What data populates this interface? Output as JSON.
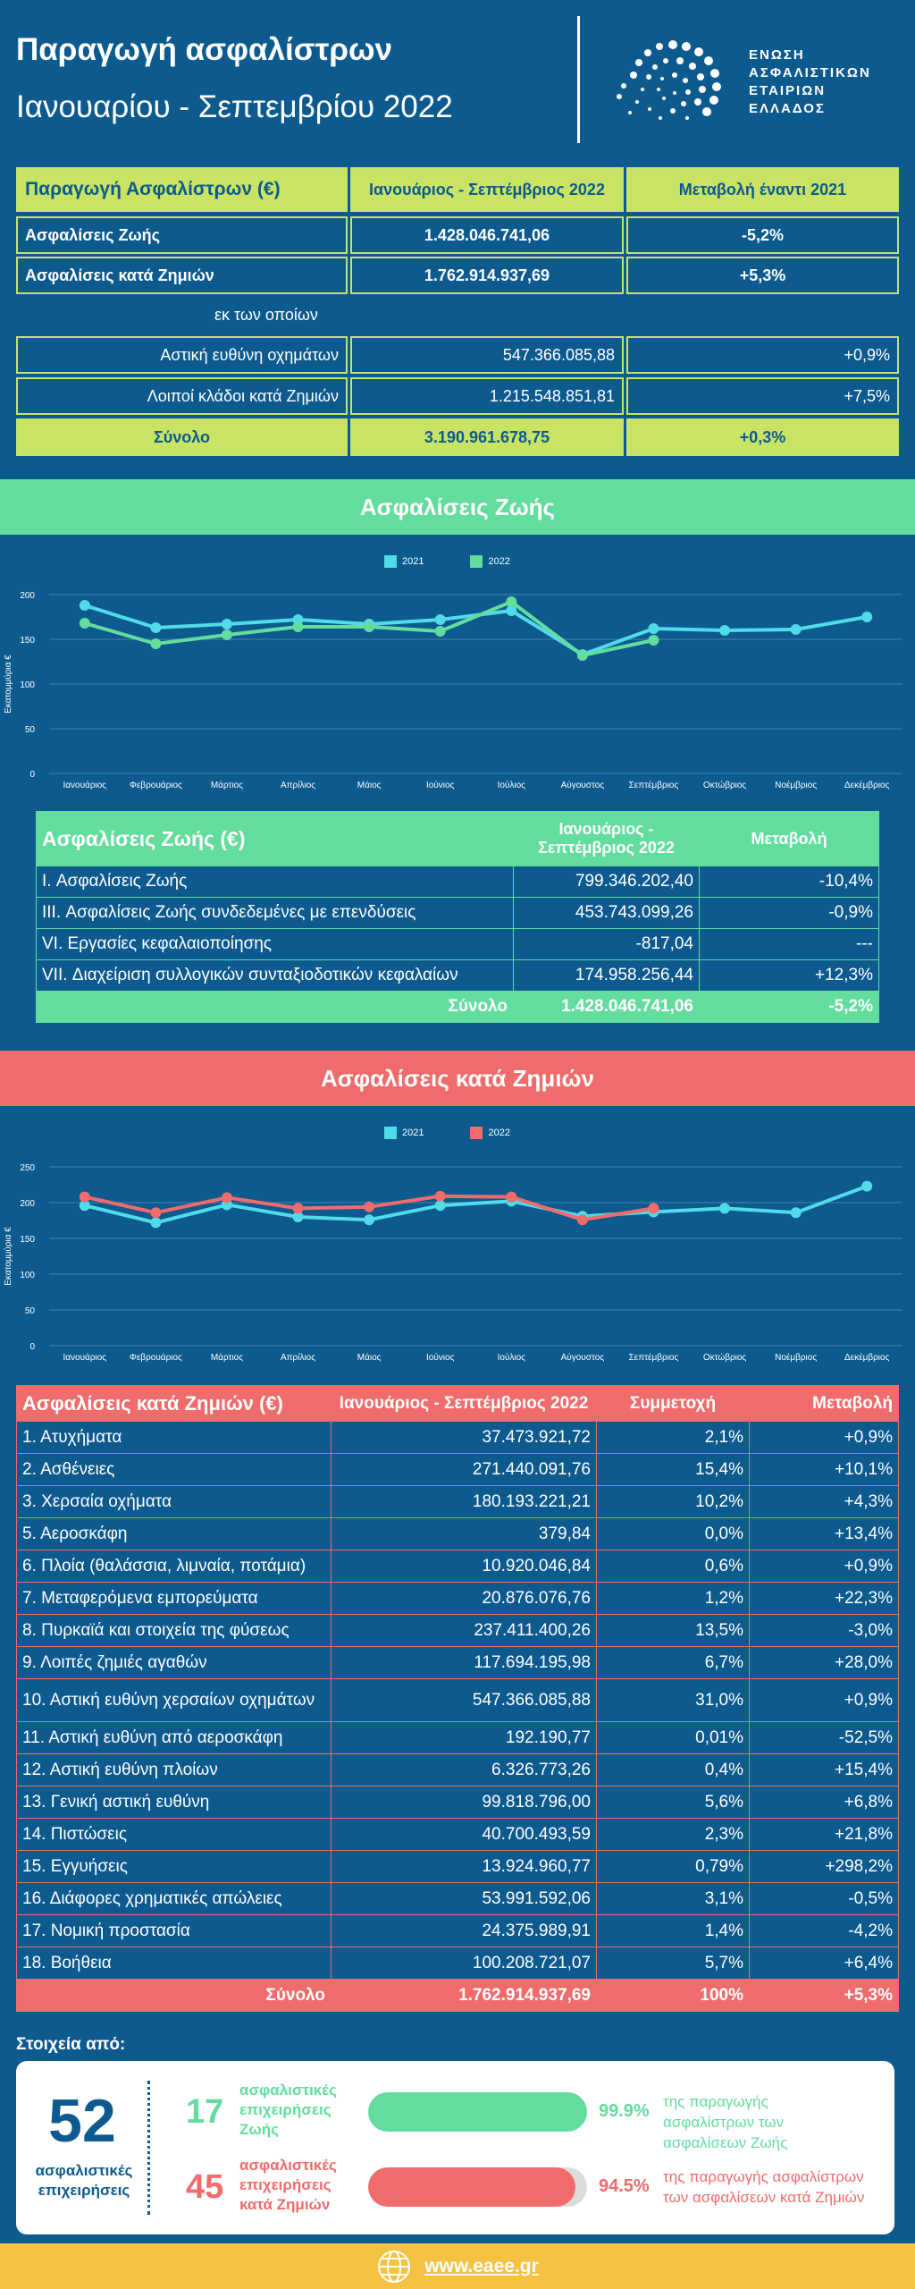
{
  "header": {
    "title": "Παραγωγή ασφαλίστρων",
    "period": "Ιανουαρίου - Σεπτεμβρίου 2022",
    "logo_lines": [
      "ΕΝΩΣΗ",
      "ΑΣΦΑΛΙΣΤΙΚΩΝ",
      "ΕΤΑΙΡΙΩΝ",
      "ΕΛΛΑΔΟΣ"
    ]
  },
  "summary": {
    "headers": [
      "Παραγωγή Ασφαλίστρων (€)",
      "Ιανουάριος - Σεπτέμβριος 2022",
      "Μεταβολή έναντι 2021"
    ],
    "life": [
      "Ασφαλίσεις Ζωής",
      "1.428.046.741,06",
      "-5,2%"
    ],
    "nonlife": [
      "Ασφαλίσεις κατά Ζημιών",
      "1.762.914.937,69",
      "+5,3%"
    ],
    "of_which": "εκ των οποίων",
    "motor": [
      "Αστική ευθύνη οχημάτων",
      "547.366.085,88",
      "+0,9%"
    ],
    "other": [
      "Λοιποί κλάδοι κατά Ζημιών",
      "1.215.548.851,81",
      "+7,5%"
    ],
    "total": [
      "Σύνολο",
      "3.190.961.678,75",
      "+0,3%"
    ]
  },
  "life_section": {
    "band": "Ασφαλίσεις Ζωής"
  },
  "life_chart": {
    "legend": [
      "2021",
      "2022"
    ],
    "colors": [
      "#4fdbe8",
      "#62dd9d"
    ]
  },
  "nonlife_chart": {
    "legend": [
      "2021",
      "2022"
    ],
    "colors": [
      "#4fdbe8",
      "#f06b6b"
    ]
  },
  "chart_data": [
    {
      "type": "line",
      "title": "Ασφαλίσεις Ζωής",
      "ylabel": "Εκατομμύρια €",
      "ylim": [
        0,
        200
      ],
      "yticks": [
        0,
        50,
        100,
        150,
        200
      ],
      "categories": [
        "Ιανουάριος",
        "Φεβρουάριος",
        "Μάρτιος",
        "Απρίλιος",
        "Μάιος",
        "Ιούνιος",
        "Ιούλιος",
        "Αύγουστος",
        "Σεπτέμβριος",
        "Οκτώβριος",
        "Νοέμβριος",
        "Δεκέμβριος"
      ],
      "series": [
        {
          "name": "2021",
          "values": [
            188,
            163,
            167,
            172,
            167,
            172,
            182,
            133,
            162,
            160,
            161,
            175
          ]
        },
        {
          "name": "2022",
          "values": [
            168,
            145,
            155,
            164,
            164,
            159,
            192,
            132,
            149,
            null,
            null,
            null
          ]
        }
      ]
    },
    {
      "type": "line",
      "title": "Ασφαλίσεις κατά Ζημιών",
      "ylabel": "Εκατομμύρια €",
      "ylim": [
        0,
        250
      ],
      "yticks": [
        0,
        50,
        100,
        150,
        200,
        250
      ],
      "categories": [
        "Ιανουάριος",
        "Φεβρουάριος",
        "Μάρτιος",
        "Απρίλιος",
        "Μάιος",
        "Ιούνιος",
        "Ιούλιος",
        "Αύγουστος",
        "Σεπτέμβριος",
        "Οκτώβριος",
        "Νοέμβριος",
        "Δεκέμβριος"
      ],
      "series": [
        {
          "name": "2021",
          "values": [
            196,
            172,
            197,
            180,
            176,
            196,
            202,
            181,
            187,
            192,
            186,
            223
          ]
        },
        {
          "name": "2022",
          "values": [
            208,
            186,
            207,
            192,
            194,
            209,
            208,
            176,
            192,
            null,
            null,
            null
          ]
        }
      ]
    }
  ],
  "life_table": {
    "headers": [
      "Ασφαλίσεις Ζωής (€)",
      "Ιανουάριος - Σεπτέμβριος 2022",
      "Μεταβολή"
    ],
    "rows": [
      [
        "I. Ασφαλίσεις  Ζωής",
        "799.346.202,40",
        "-10,4%"
      ],
      [
        "III. Ασφαλίσεις  Ζωής  συνδεδεμένες με επενδύσεις",
        "453.743.099,26",
        "-0,9%"
      ],
      [
        "VI. Εργασίες κεφαλαιοποίησης",
        "-817,04",
        "---"
      ],
      [
        "VII. Διαχείριση συλλογικών συνταξιοδοτικών κεφαλαίων",
        "174.958.256,44",
        "+12,3%"
      ]
    ],
    "total": [
      "Σύνολο",
      "1.428.046.741,06",
      "-5,2%"
    ]
  },
  "nonlife_section": {
    "band": "Ασφαλίσεις κατά Ζημιών"
  },
  "nonlife_table": {
    "headers": [
      "Ασφαλίσεις κατά Ζημιών (€)",
      "Ιανουάριος - Σεπτέμβριος 2022",
      "Συμμετοχή",
      "Μεταβολή"
    ],
    "rows": [
      [
        "1. Ατυχήματα",
        "37.473.921,72",
        "2,1%",
        "+0,9%"
      ],
      [
        "2. Ασθένειες",
        "271.440.091,76",
        "15,4%",
        "+10,1%"
      ],
      [
        "3. Χερσαία οχήματα",
        "180.193.221,21",
        "10,2%",
        "+4,3%"
      ],
      [
        "5. Αεροσκάφη",
        "379,84",
        "0,0%",
        "+13,4%"
      ],
      [
        "6. Πλοία (θαλάσσια, λιμναία, ποτάμια)",
        "10.920.046,84",
        "0,6%",
        "+0,9%"
      ],
      [
        "7. Μεταφερόμενα εμπορεύματα",
        "20.876.076,76",
        "1,2%",
        "+22,3%"
      ],
      [
        "8. Πυρκαϊά και στοιχεία της φύσεως",
        "237.411.400,26",
        "13,5%",
        "-3,0%"
      ],
      [
        "9. Λοιπές ζημιές αγαθών",
        "117.694.195,98",
        "6,7%",
        "+28,0%"
      ],
      [
        "10. Αστική ευθύνη χερσαίων οχημάτων",
        "547.366.085,88",
        "31,0%",
        "+0,9%"
      ],
      [
        "11. Αστική ευθύνη από αεροσκάφη",
        "192.190,77",
        "0,01%",
        "-52,5%"
      ],
      [
        "12. Αστική ευθύνη πλοίων",
        "6.326.773,26",
        "0,4%",
        "+15,4%"
      ],
      [
        "13. Γενική αστική ευθύνη",
        "99.818.796,00",
        "5,6%",
        "+6,8%"
      ],
      [
        "14. Πιστώσεις",
        "40.700.493,59",
        "2,3%",
        "+21,8%"
      ],
      [
        "15. Εγγυήσεις",
        "13.924.960,77",
        "0,79%",
        "+298,2%"
      ],
      [
        "16. Διάφορες χρηματικές απώλειες",
        "53.991.592,06",
        "3,1%",
        "-0,5%"
      ],
      [
        "17. Νομική προστασία",
        "24.375.989,91",
        "1,4%",
        "-4,2%"
      ],
      [
        "18. Βοήθεια",
        "100.208.721,07",
        "5,7%",
        "+6,4%"
      ]
    ],
    "total": [
      "Σύνολο",
      "1.762.914.937,69",
      "100%",
      "+5,3%"
    ]
  },
  "stats": {
    "heading": "Στοιχεία από:",
    "total_count": "52",
    "total_label": "ασφαλιστικές επιχειρήσεις",
    "life_count": "17",
    "life_label": "ασφαλιστικές επιχειρήσεις Ζωής",
    "life_pct": "99.9%",
    "life_pct_value": 99.9,
    "life_desc": "της παραγωγής ασφαλίστρων των ασφαλίσεων Ζωής",
    "nonlife_count": "45",
    "nonlife_label": "ασφαλιστικές επιχειρήσεις κατά Ζημιών",
    "nonlife_pct": "94.5%",
    "nonlife_pct_value": 94.5,
    "nonlife_desc": "της παραγωγής ασφαλίστρων των ασφαλίσεων κατά Ζημιών"
  },
  "footer": {
    "url": "www.eaee.gr"
  }
}
